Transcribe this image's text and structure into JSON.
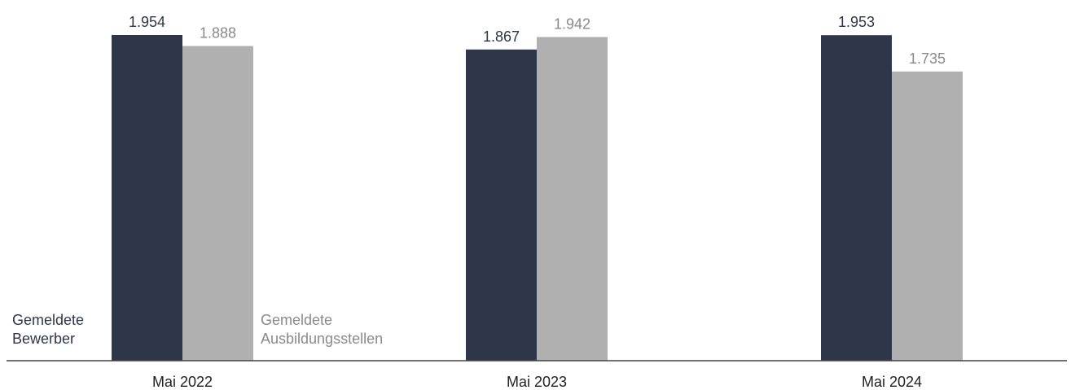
{
  "chart_data": {
    "type": "bar",
    "categories": [
      "Mai 2022",
      "Mai 2023",
      "Mai 2024"
    ],
    "series": [
      {
        "name": "Gemeldete Bewerber",
        "name_lines": [
          "Gemeldete",
          "Bewerber"
        ],
        "values": [
          1954,
          1867,
          1953
        ],
        "value_labels": [
          "1.954",
          "1.867",
          "1.953"
        ],
        "color": "#2e3649",
        "label_color": "#2e3649"
      },
      {
        "name": "Gemeldete Ausbildungsstellen",
        "name_lines": [
          "Gemeldete",
          "Ausbildungsstellen"
        ],
        "values": [
          1888,
          1942,
          1735
        ],
        "value_labels": [
          "1.888",
          "1.942",
          "1.735"
        ],
        "color": "#b0b0b0",
        "label_color": "#8a8a8a"
      }
    ],
    "ylim": [
      0,
      1954
    ],
    "grid": false,
    "legend_placement": "bottom-inside"
  }
}
